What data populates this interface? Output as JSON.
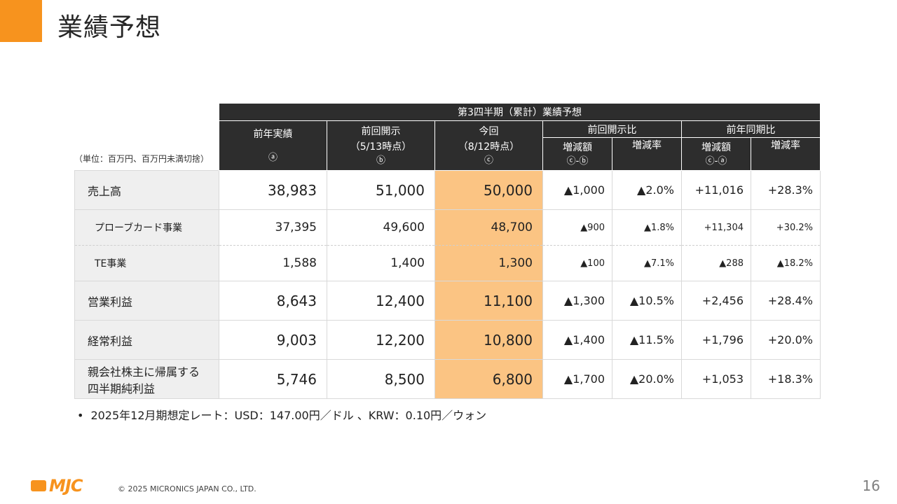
{
  "title": "業績予想",
  "unit_note": "（単位：百万円、百万円未満切捨）",
  "table": {
    "header_top": "第3四半期（累計）業績予想",
    "col_prev_year": {
      "label": "前年実績",
      "mark": "ⓐ"
    },
    "col_prev_disclosure": {
      "label": "前回開示",
      "sub": "（5/13時点）",
      "mark": "ⓑ"
    },
    "col_current": {
      "label": "今回",
      "sub": "（8/12時点）",
      "mark": "ⓒ"
    },
    "group_vs_prev": "前回開示比",
    "group_yoy": "前年同期比",
    "amt_label": "増減額",
    "rate_label": "増減率",
    "diff_cb": "ⓒ-ⓑ",
    "diff_ca": "ⓒ-ⓐ",
    "rows": [
      {
        "label": "売上高",
        "a": "38,983",
        "b": "51,000",
        "c": "50,000",
        "d1": "▲1,000",
        "r1": "▲2.0%",
        "d2": "+11,016",
        "r2": "+28.3%"
      },
      {
        "label": "プローブカード事業",
        "a": "37,395",
        "b": "49,600",
        "c": "48,700",
        "d1": "▲900",
        "r1": "▲1.8%",
        "d2": "+11,304",
        "r2": "+30.2%"
      },
      {
        "label": "TE事業",
        "a": "1,588",
        "b": "1,400",
        "c": "1,300",
        "d1": "▲100",
        "r1": "▲7.1%",
        "d2": "▲288",
        "r2": "▲18.2%"
      },
      {
        "label": "営業利益",
        "a": "8,643",
        "b": "12,400",
        "c": "11,100",
        "d1": "▲1,300",
        "r1": "▲10.5%",
        "d2": "+2,456",
        "r2": "+28.4%"
      },
      {
        "label": "経常利益",
        "a": "9,003",
        "b": "12,200",
        "c": "10,800",
        "d1": "▲1,400",
        "r1": "▲11.5%",
        "d2": "+1,796",
        "r2": "+20.0%"
      },
      {
        "label_line1": "親会社株主に帰属する",
        "label_line2": "四半期純利益",
        "a": "5,746",
        "b": "8,500",
        "c": "6,800",
        "d1": "▲1,700",
        "r1": "▲20.0%",
        "d2": "+1,053",
        "r2": "+18.3%"
      }
    ]
  },
  "rate_note": {
    "bullet": "•",
    "text": "2025年12月期想定レート：USD：147.00円／ドル 、KRW：0.10円／ウォン"
  },
  "footer": {
    "logo_text": "MJC",
    "copyright": "© 2025 MICRONICS JAPAN CO., LTD.",
    "page": "16"
  },
  "colors": {
    "accent": "#f7931e",
    "header_bg": "#2d2d2d",
    "highlight": "#fbc483",
    "label_bg": "#efefef"
  }
}
